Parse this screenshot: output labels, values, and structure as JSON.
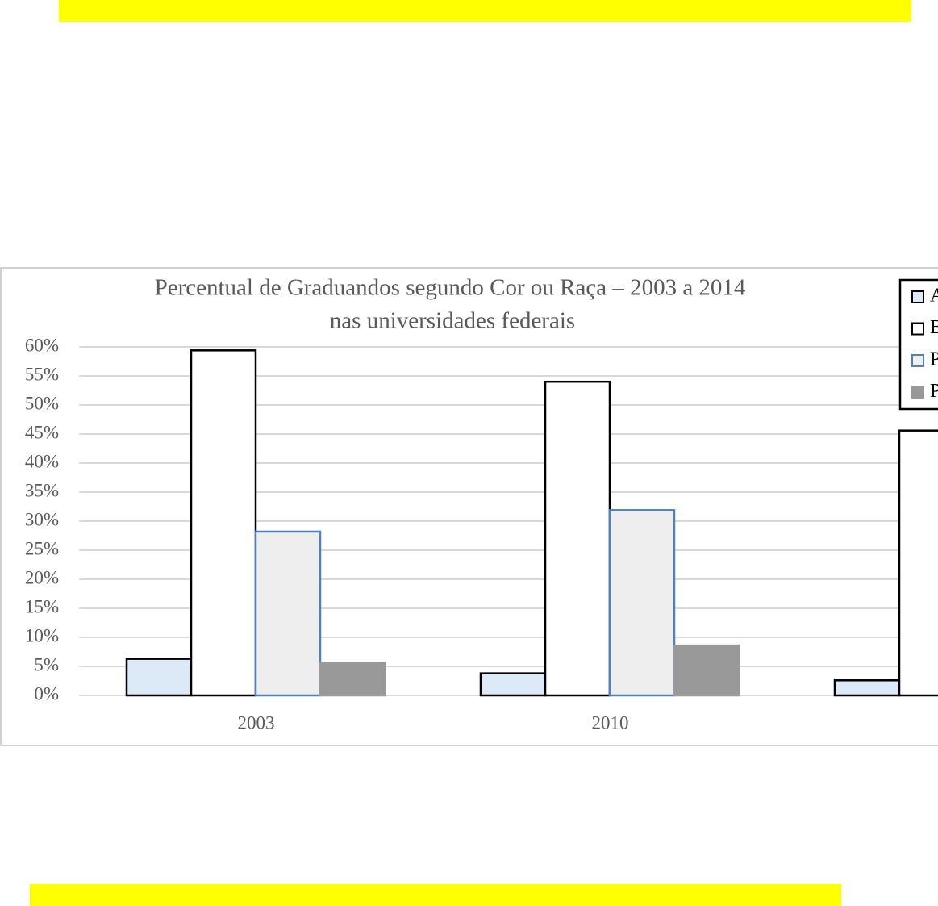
{
  "chart_data": {
    "type": "bar",
    "title_lines": [
      "Percentual de Graduandos segundo Cor ou Raça – 2003 a 2014",
      "nas universidades federais"
    ],
    "categories": [
      "2003",
      "2010",
      null
    ],
    "series": [
      {
        "name": "Amarela",
        "color": "#dce9f7",
        "stroke": "#000000",
        "values": [
          6.3,
          3.8,
          2.6
        ]
      },
      {
        "name": "Branca",
        "color": "#ffffff",
        "stroke": "#000000",
        "values": [
          59.4,
          54.0,
          45.6
        ]
      },
      {
        "name": "Parda",
        "color": "#eeeeee",
        "stroke": "#4f81bd",
        "values": [
          28.2,
          31.9,
          null
        ]
      },
      {
        "name": "Preta",
        "color": "#999999",
        "stroke": "#999999",
        "values": [
          5.6,
          8.6,
          null
        ]
      }
    ],
    "ylim": [
      0,
      60
    ],
    "yticks": [
      {
        "value": 0,
        "label": "0%"
      },
      {
        "value": 5,
        "label": "5%"
      },
      {
        "value": 10,
        "label": "10%"
      },
      {
        "value": 15,
        "label": "15%"
      },
      {
        "value": 20,
        "label": "20%"
      },
      {
        "value": 25,
        "label": "25%"
      },
      {
        "value": 30,
        "label": "30%"
      },
      {
        "value": 35,
        "label": "35%"
      },
      {
        "value": 40,
        "label": "40%"
      },
      {
        "value": 45,
        "label": "45%"
      },
      {
        "value": 50,
        "label": "50%"
      },
      {
        "value": 55,
        "label": "55%"
      },
      {
        "value": 60,
        "label": "60%"
      }
    ],
    "grid": true,
    "legend": "top-right"
  }
}
